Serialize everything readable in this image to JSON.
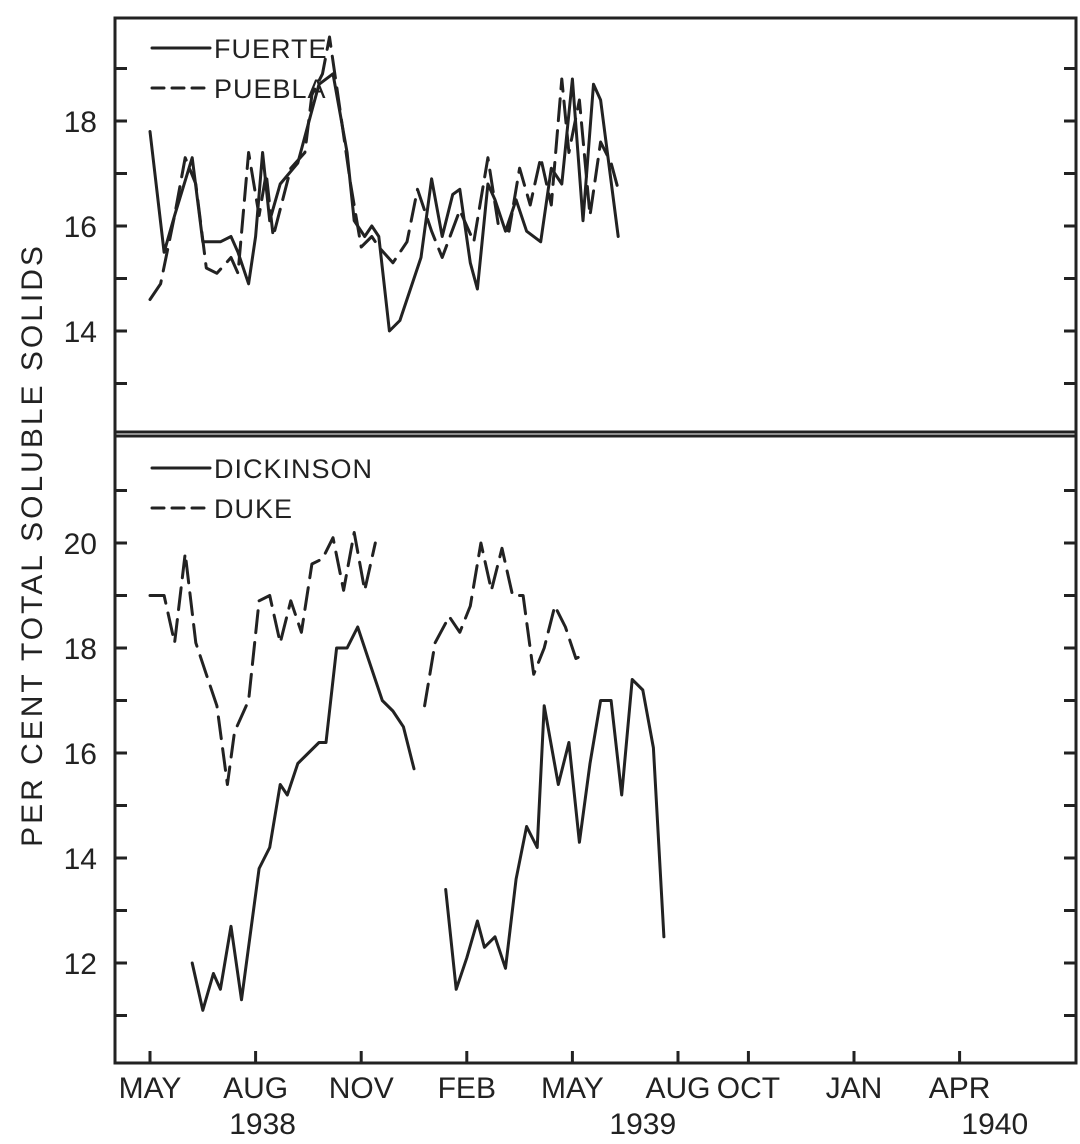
{
  "chart_data": [
    {
      "type": "line",
      "panel": "top",
      "title": "",
      "ylabel": "PER CENT TOTAL SOLUBLE SOLIDS",
      "xlabel": "",
      "ylim": [
        12,
        20
      ],
      "yticks": [
        14,
        16,
        18
      ],
      "legend_position": "top-left",
      "grid": false,
      "series": [
        {
          "name": "FUERTE",
          "style": "solid",
          "segments": [
            [
              [
                0,
                17.8
              ],
              [
                0.4,
                15.5
              ],
              [
                0.7,
                16.2
              ],
              [
                1.2,
                17.3
              ],
              [
                1.5,
                15.7
              ],
              [
                2.0,
                15.7
              ],
              [
                2.3,
                15.8
              ],
              [
                2.5,
                15.5
              ],
              [
                2.8,
                14.9
              ],
              [
                3.0,
                15.8
              ],
              [
                3.2,
                17.4
              ],
              [
                3.4,
                16.1
              ],
              [
                3.7,
                16.8
              ],
              [
                4.2,
                17.2
              ],
              [
                4.6,
                18.2
              ],
              [
                4.8,
                18.7
              ],
              [
                5.2,
                18.9
              ],
              [
                5.6,
                17.4
              ],
              [
                5.8,
                16.1
              ],
              [
                6.1,
                15.8
              ],
              [
                6.3,
                16.0
              ],
              [
                6.5,
                15.8
              ],
              [
                6.8,
                14.0
              ],
              [
                7.1,
                14.2
              ],
              [
                7.7,
                15.4
              ],
              [
                8.0,
                16.9
              ],
              [
                8.3,
                15.8
              ],
              [
                8.6,
                16.6
              ],
              [
                8.8,
                16.7
              ],
              [
                9.1,
                15.3
              ],
              [
                9.3,
                14.8
              ],
              [
                9.6,
                16.8
              ],
              [
                9.8,
                16.5
              ],
              [
                10.1,
                15.9
              ],
              [
                10.4,
                16.5
              ],
              [
                10.7,
                15.9
              ],
              [
                11.1,
                15.7
              ],
              [
                11.4,
                17.1
              ],
              [
                11.7,
                16.8
              ],
              [
                12.0,
                18.8
              ],
              [
                12.3,
                16.1
              ],
              [
                12.6,
                18.7
              ],
              [
                12.8,
                18.4
              ],
              [
                13.3,
                15.8
              ]
            ]
          ]
        },
        {
          "name": "PUEBLA",
          "style": "dashed",
          "segments": [
            [
              [
                0,
                14.6
              ],
              [
                0.3,
                14.9
              ],
              [
                0.7,
                16.2
              ],
              [
                1.0,
                17.3
              ],
              [
                1.3,
                16.8
              ],
              [
                1.6,
                15.2
              ],
              [
                1.9,
                15.1
              ],
              [
                2.3,
                15.4
              ],
              [
                2.5,
                15.1
              ],
              [
                2.8,
                17.4
              ],
              [
                3.1,
                16.2
              ],
              [
                3.3,
                17.0
              ],
              [
                3.5,
                15.8
              ],
              [
                4.0,
                17.1
              ],
              [
                4.4,
                17.4
              ],
              [
                4.6,
                18.5
              ],
              [
                4.9,
                18.9
              ],
              [
                5.1,
                19.6
              ],
              [
                5.4,
                18.2
              ],
              [
                5.7,
                16.8
              ],
              [
                6.0,
                15.6
              ],
              [
                6.3,
                15.8
              ],
              [
                6.5,
                15.6
              ],
              [
                6.9,
                15.3
              ],
              [
                7.3,
                15.7
              ],
              [
                7.6,
                16.7
              ],
              [
                8.0,
                15.9
              ],
              [
                8.3,
                15.4
              ],
              [
                8.8,
                16.3
              ],
              [
                9.2,
                15.7
              ],
              [
                9.6,
                17.3
              ],
              [
                9.9,
                16.0
              ],
              [
                10.2,
                15.9
              ],
              [
                10.5,
                17.1
              ],
              [
                10.8,
                16.4
              ],
              [
                11.1,
                17.3
              ],
              [
                11.4,
                16.4
              ],
              [
                11.7,
                18.8
              ],
              [
                11.9,
                17.4
              ],
              [
                12.2,
                18.4
              ],
              [
                12.5,
                16.2
              ],
              [
                12.8,
                17.6
              ],
              [
                13.1,
                17.2
              ],
              [
                13.3,
                16.7
              ]
            ]
          ]
        }
      ]
    },
    {
      "type": "line",
      "panel": "bottom",
      "title": "",
      "ylabel": "PER CENT TOTAL SOLUBLE SOLIDS",
      "xlabel": "",
      "ylim": [
        10,
        22
      ],
      "yticks": [
        12,
        14,
        16,
        18,
        20
      ],
      "legend_position": "top-left",
      "grid": false,
      "series": [
        {
          "name": "DICKINSON",
          "style": "solid",
          "segments": [
            [
              [
                1.2,
                12.0
              ],
              [
                1.5,
                11.1
              ],
              [
                1.8,
                11.8
              ],
              [
                2.0,
                11.5
              ],
              [
                2.3,
                12.7
              ],
              [
                2.6,
                11.3
              ],
              [
                3.1,
                13.8
              ],
              [
                3.4,
                14.2
              ],
              [
                3.7,
                15.4
              ],
              [
                3.9,
                15.2
              ],
              [
                4.2,
                15.8
              ],
              [
                4.5,
                16.0
              ],
              [
                4.8,
                16.2
              ],
              [
                5.0,
                16.2
              ],
              [
                5.3,
                18.0
              ],
              [
                5.6,
                18.0
              ],
              [
                5.9,
                18.4
              ],
              [
                6.2,
                17.8
              ],
              [
                6.6,
                17.0
              ],
              [
                6.9,
                16.8
              ],
              [
                7.2,
                16.5
              ],
              [
                7.5,
                15.7
              ]
            ],
            [
              [
                8.4,
                13.4
              ],
              [
                8.7,
                11.5
              ],
              [
                9.0,
                12.1
              ],
              [
                9.3,
                12.8
              ],
              [
                9.5,
                12.3
              ],
              [
                9.8,
                12.5
              ],
              [
                10.1,
                11.9
              ],
              [
                10.4,
                13.6
              ],
              [
                10.7,
                14.6
              ],
              [
                11.0,
                14.2
              ],
              [
                11.2,
                16.9
              ],
              [
                11.6,
                15.4
              ],
              [
                11.9,
                16.2
              ],
              [
                12.2,
                14.3
              ],
              [
                12.5,
                15.8
              ],
              [
                12.8,
                17.0
              ],
              [
                13.1,
                17.0
              ],
              [
                13.4,
                15.2
              ],
              [
                13.7,
                17.4
              ],
              [
                14.0,
                17.2
              ],
              [
                14.3,
                16.1
              ],
              [
                14.6,
                12.5
              ]
            ]
          ]
        },
        {
          "name": "DUKE",
          "style": "dashed",
          "segments": [
            [
              [
                0,
                19.0
              ],
              [
                0.4,
                19.0
              ],
              [
                0.7,
                18.1
              ],
              [
                1.0,
                19.8
              ],
              [
                1.3,
                18.1
              ],
              [
                1.6,
                17.5
              ],
              [
                1.9,
                16.9
              ],
              [
                2.2,
                15.4
              ],
              [
                2.4,
                16.4
              ],
              [
                2.8,
                17.0
              ],
              [
                3.1,
                18.9
              ],
              [
                3.4,
                19.0
              ],
              [
                3.7,
                18.1
              ],
              [
                4.0,
                18.9
              ],
              [
                4.3,
                18.3
              ],
              [
                4.6,
                19.6
              ],
              [
                4.9,
                19.7
              ],
              [
                5.2,
                20.1
              ],
              [
                5.5,
                19.1
              ],
              [
                5.8,
                20.2
              ],
              [
                6.1,
                19.1
              ],
              [
                6.4,
                20.0
              ]
            ],
            [
              [
                7.8,
                16.9
              ],
              [
                8.1,
                18.1
              ],
              [
                8.5,
                18.6
              ],
              [
                8.8,
                18.3
              ],
              [
                9.1,
                18.8
              ],
              [
                9.4,
                20.0
              ],
              [
                9.7,
                19.1
              ],
              [
                10.0,
                19.9
              ],
              [
                10.3,
                19.0
              ],
              [
                10.6,
                19.0
              ],
              [
                10.9,
                17.5
              ],
              [
                11.2,
                18.0
              ],
              [
                11.5,
                18.8
              ],
              [
                11.8,
                18.4
              ],
              [
                12.1,
                17.8
              ],
              [
                12.4,
                17.9
              ]
            ]
          ]
        }
      ]
    }
  ],
  "x_axis": {
    "month_labels": [
      "MAY",
      "AUG",
      "NOV",
      "FEB",
      "MAY",
      "AUG",
      "OCT",
      "JAN",
      "APR"
    ],
    "month_positions": [
      0,
      3,
      6,
      9,
      12,
      15,
      17,
      20,
      23
    ],
    "year_labels": [
      "1938",
      "1939",
      "1940"
    ],
    "year_positions": [
      3.2,
      14.0,
      24.0
    ]
  }
}
